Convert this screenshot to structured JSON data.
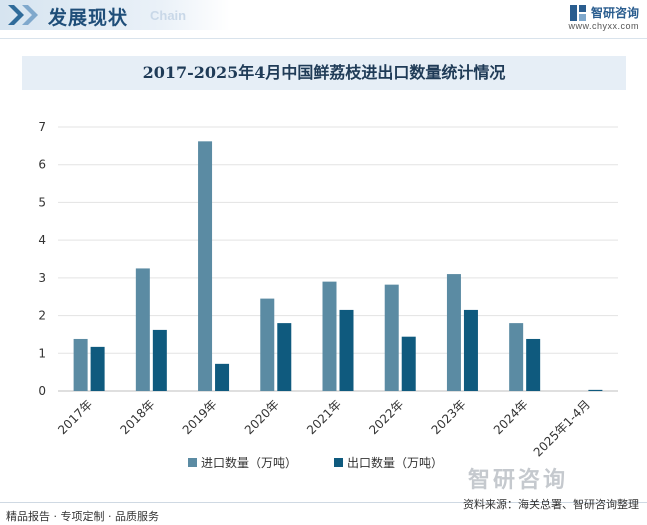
{
  "header": {
    "section_title": "发展现状",
    "section_subtitle": "Chain",
    "brand_name": "智研咨询",
    "brand_url": "www.chyxx.com"
  },
  "footer": {
    "left_text": "精品报告 · 专项定制 · 品质服务",
    "source_text": "资料来源：海关总署、智研咨询整理",
    "watermark_brand": "智研咨询"
  },
  "chart_data": {
    "type": "bar",
    "title": "2017-2025年4月中国鲜荔枝进出口数量统计情况",
    "categories": [
      "2017年",
      "2018年",
      "2019年",
      "2020年",
      "2021年",
      "2022年",
      "2023年",
      "2024年",
      "2025年1-4月"
    ],
    "series": [
      {
        "name": "进口数量（万吨）",
        "color": "#5b8ba3",
        "values": [
          1.38,
          3.25,
          6.62,
          2.45,
          2.9,
          2.82,
          3.1,
          1.8,
          0
        ]
      },
      {
        "name": "出口数量（万吨）",
        "color": "#0f5a7e",
        "values": [
          1.17,
          1.62,
          0.72,
          1.8,
          2.15,
          1.44,
          2.15,
          1.38,
          0.03
        ]
      }
    ],
    "yticks": [
      "0",
      "1",
      "2",
      "3",
      "4",
      "5",
      "6",
      "7"
    ],
    "ylim": [
      0,
      7
    ],
    "xlabel": "",
    "ylabel": "",
    "grid": true,
    "legend_position": "bottom-center"
  }
}
